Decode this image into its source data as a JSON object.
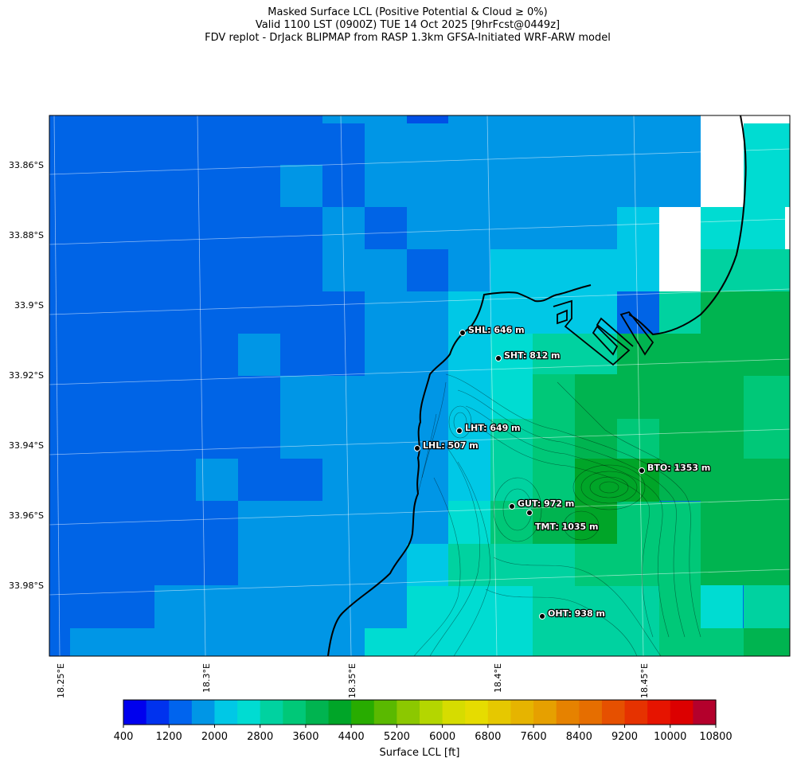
{
  "title": {
    "line1": "Masked Surface LCL (Positive Potential & Cloud ≥ 0%)",
    "line2": "Valid 1100 LST (0900Z) TUE 14 Oct 2025 [9hrFcst@0449z]",
    "line3": "FDV replot - DrJack BLIPMAP from RASP 1.3km GFSA-Initiated WRF-ARW model"
  },
  "map": {
    "lat_ticks": [
      "33.86°S",
      "33.88°S",
      "33.9°S",
      "33.92°S",
      "33.94°S",
      "33.96°S",
      "33.98°S"
    ],
    "lon_ticks": [
      "18.25°E",
      "18.3°E",
      "18.35°E",
      "18.4°E",
      "18.45°E"
    ],
    "stations": [
      {
        "code": "SHL",
        "label": "SHL: 646 m"
      },
      {
        "code": "SHT",
        "label": "SHT: 812 m"
      },
      {
        "code": "LHT",
        "label": "LHT: 649 m"
      },
      {
        "code": "LHL",
        "label": "LHL: 507 m"
      },
      {
        "code": "BTO",
        "label": "BTO: 1353 m"
      },
      {
        "code": "GUT",
        "label": "GUT: 972 m"
      },
      {
        "code": "TMT",
        "label": "TMT: 1035 m"
      },
      {
        "code": "OHT",
        "label": "OHT: 938 m"
      }
    ]
  },
  "colorbar": {
    "label": "Surface LCL [ft]",
    "ticks": [
      "400",
      "1200",
      "2000",
      "2800",
      "3600",
      "4400",
      "5200",
      "6000",
      "6800",
      "7600",
      "8400",
      "9200",
      "10000",
      "10800"
    ],
    "colors": [
      "#0000ee",
      "#0032ee",
      "#0064ee",
      "#0096e6",
      "#00c8e6",
      "#00dcd2",
      "#00d2a0",
      "#00c878",
      "#00b450",
      "#00a528",
      "#28ac00",
      "#5ab900",
      "#8cc800",
      "#b4d600",
      "#d6dc00",
      "#e6dc00",
      "#e6c800",
      "#e6b400",
      "#e6a000",
      "#e68200",
      "#e66e00",
      "#e65000",
      "#e63200",
      "#e61400",
      "#dc0000",
      "#b4002c"
    ]
  }
}
